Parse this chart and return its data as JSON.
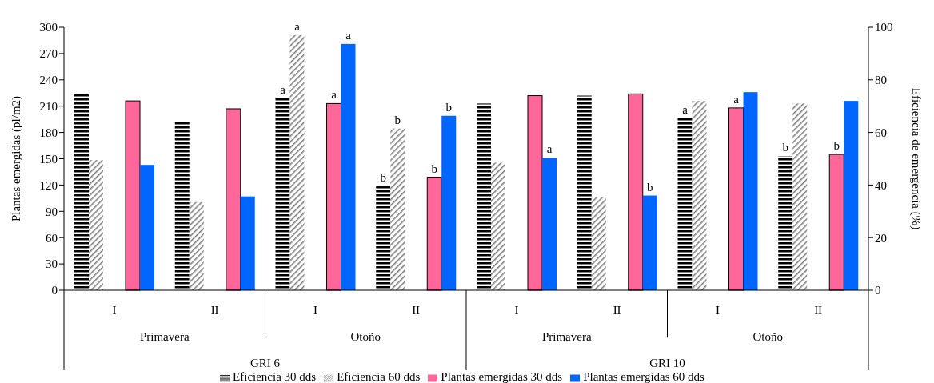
{
  "chart_data": {
    "type": "bar",
    "ylabel": "Plantas emergidas (pl/m2)",
    "y2label": "Eficiencia de emergencia (%)",
    "categories": [
      "I",
      "II",
      "I",
      "II",
      "I",
      "II",
      "I",
      "II"
    ],
    "annotations": [
      "Primavera",
      "Otoño",
      "Primavera",
      "Otoño",
      "GRI 6",
      "GRI 10"
    ],
    "series": [
      {
        "name": "Eficiencia 30 dds",
        "color": "#000000",
        "axis": "y2",
        "values": [
          74.5,
          64,
          73,
          39.5,
          71,
          74,
          65.5,
          51
        ],
        "value_labels": [
          null,
          null,
          "a",
          "b",
          null,
          null,
          "a",
          "b"
        ]
      },
      {
        "name": "Eficiencia 60 dds",
        "color": "#808080",
        "axis": "y2",
        "values": [
          49.5,
          33.5,
          97,
          61.5,
          48.5,
          35.5,
          72,
          71
        ],
        "value_labels": [
          null,
          null,
          "a",
          "b",
          null,
          null,
          null,
          null
        ]
      },
      {
        "name": "Plantas emergidas 30 dds",
        "color": "#ff6699",
        "values": [
          216,
          207,
          213,
          129,
          222,
          224,
          208,
          155
        ],
        "value_labels": [
          null,
          null,
          "a",
          "b",
          null,
          null,
          "a",
          "b"
        ]
      },
      {
        "name": "Plantas emergidas 60 dds",
        "color": "#0066ff",
        "values": [
          143,
          107,
          281,
          199,
          151,
          108,
          226,
          216
        ],
        "value_labels": [
          null,
          null,
          "a",
          "b",
          "a",
          "b",
          null,
          null
        ]
      }
    ],
    "ylim": [
      0,
      300
    ],
    "yticks": [
      0,
      30,
      60,
      90,
      120,
      150,
      180,
      210,
      240,
      270,
      300
    ],
    "y2lim": [
      0,
      100
    ],
    "y2ticks": [
      0,
      20,
      40,
      60,
      80,
      100
    ],
    "legend": "bottom",
    "grid": false
  }
}
